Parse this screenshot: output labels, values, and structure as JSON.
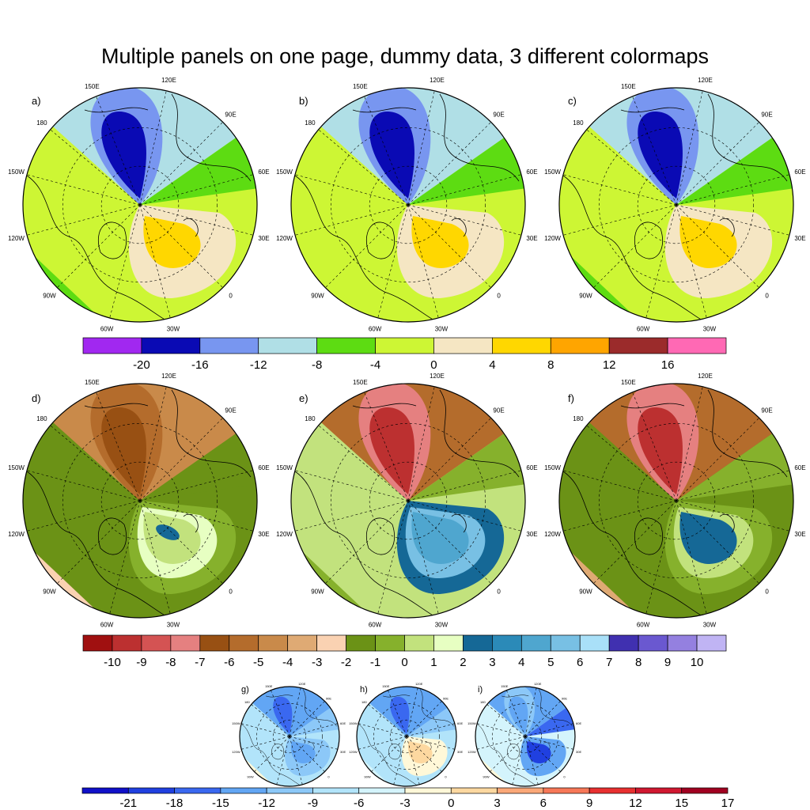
{
  "title": "Multiple panels on one page, dummy data, 3 different colormaps",
  "lon_labels": [
    "150E",
    "120E",
    "90E",
    "60E",
    "30E",
    "0",
    "30W",
    "60W",
    "90W",
    "120W",
    "150W",
    "180"
  ],
  "colorbars": [
    {
      "name": "colorbar-1",
      "colors": [
        "#a128f0",
        "#0a0ab4",
        "#7896f0",
        "#b0dfe6",
        "#5ddc12",
        "#cdf634",
        "#f5e6c3",
        "#ffd700",
        "#ffa500",
        "#9b2b2b",
        "#ff69b4"
      ],
      "labels": [
        "-20",
        "-16",
        "-12",
        "-8",
        "-4",
        "0",
        "4",
        "8",
        "12",
        "16"
      ]
    },
    {
      "name": "colorbar-2",
      "colors": [
        "#a01010",
        "#bc3030",
        "#d45353",
        "#e58080",
        "#985013",
        "#b46c2c",
        "#c98a4a",
        "#dfaa74",
        "#fad2b2",
        "#6b9216",
        "#86b12c",
        "#c2e27d",
        "#e7ffc2",
        "#156896",
        "#2b8ab8",
        "#4fa6cf",
        "#78c0e4",
        "#a9e0f8",
        "#4030b0",
        "#6a58d0",
        "#9480e0",
        "#c0b4f4"
      ],
      "labels": [
        "-10",
        "-9",
        "-8",
        "-7",
        "-6",
        "-5",
        "-4",
        "-3",
        "-2",
        "-1",
        "0",
        "1",
        "2",
        "3",
        "4",
        "5",
        "6",
        "7",
        "8",
        "9",
        "10"
      ]
    },
    {
      "name": "colorbar-3",
      "colors": [
        "#1010c8",
        "#2040e0",
        "#3a68f0",
        "#62a6f4",
        "#8cc8f8",
        "#b2e4fa",
        "#d4f4fc",
        "#fff8d8",
        "#fdd8a0",
        "#fba878",
        "#f77858",
        "#e83030",
        "#d01830",
        "#a00020"
      ],
      "labels": [
        "-21",
        "-18",
        "-15",
        "-12",
        "-9",
        "-6",
        "-3",
        "0",
        "3",
        "6",
        "9",
        "12",
        "15",
        "17"
      ]
    }
  ],
  "panels": [
    {
      "label": "a)",
      "bg": "#cdf634",
      "ne": "#b0dfe6",
      "mid": "#7896f0",
      "core": "#0a0ab4",
      "se_outer": "#f5e6c3",
      "se_core": "#ffd700",
      "east": "#5ddc12",
      "west_band": "#5ddc12"
    },
    {
      "label": "b)",
      "bg": "#cdf634",
      "ne": "#b0dfe6",
      "mid": "#7896f0",
      "core": "#0a0ab4",
      "se_outer": "#f5e6c3",
      "se_core": "#ffd700",
      "east": "#5ddc12",
      "west_band": "#cdf634"
    },
    {
      "label": "c)",
      "bg": "#cdf634",
      "ne": "#b0dfe6",
      "mid": "#7896f0",
      "core": "#0a0ab4",
      "se_outer": "#f5e6c3",
      "se_core": "#ffd700",
      "east": "#5ddc12",
      "west_band": "#5ddc12"
    },
    {
      "label": "d)",
      "bg": "#6b9216",
      "ne": "#c98a4a",
      "mid": "#b46c2c",
      "core": "#985013",
      "se_outer": "#86b12c",
      "se_core": "#c2e27d",
      "east": "#6b9216",
      "west_band": "#fad2b2",
      "se_inner": "#e7ffc2",
      "se_spot": "#156896"
    },
    {
      "label": "e)",
      "bg": "#c2e27d",
      "ne": "#b46c2c",
      "mid": "#e58080",
      "core": "#bc3030",
      "se_outer": "#156896",
      "se_core": "#4fa6cf",
      "east": "#86b12c",
      "west_band": "#86b12c",
      "se_inner": "#78c0e4"
    },
    {
      "label": "f)",
      "bg": "#6b9216",
      "ne": "#b46c2c",
      "mid": "#e58080",
      "core": "#bc3030",
      "se_outer": "#86b12c",
      "se_core": "#156896",
      "east": "#86b12c",
      "west_band": "#dfaa74",
      "se_inner": "#c2e27d"
    },
    {
      "label": "g)",
      "bg": "#b2e4fa",
      "ne": "#62a6f4",
      "mid": "#62a6f4",
      "core": "#3a68f0",
      "se_outer": "#8cc8f8",
      "se_core": "#62a6f4",
      "east": "#8cc8f8",
      "west_band": "#fff8d8"
    },
    {
      "label": "h)",
      "bg": "#b2e4fa",
      "ne": "#62a6f4",
      "mid": "#62a6f4",
      "core": "#3a68f0",
      "se_outer": "#fff8d8",
      "se_core": "#fdd8a0",
      "east": "#8cc8f8",
      "west_band": "#d4f4fc"
    },
    {
      "label": "i)",
      "bg": "#d4f4fc",
      "ne": "#62a6f4",
      "mid": "#8cc8f8",
      "core": "#62a6f4",
      "se_outer": "#62a6f4",
      "se_core": "#2040e0",
      "east": "#3a68f0",
      "west_band": "#fff8d8"
    }
  ]
}
